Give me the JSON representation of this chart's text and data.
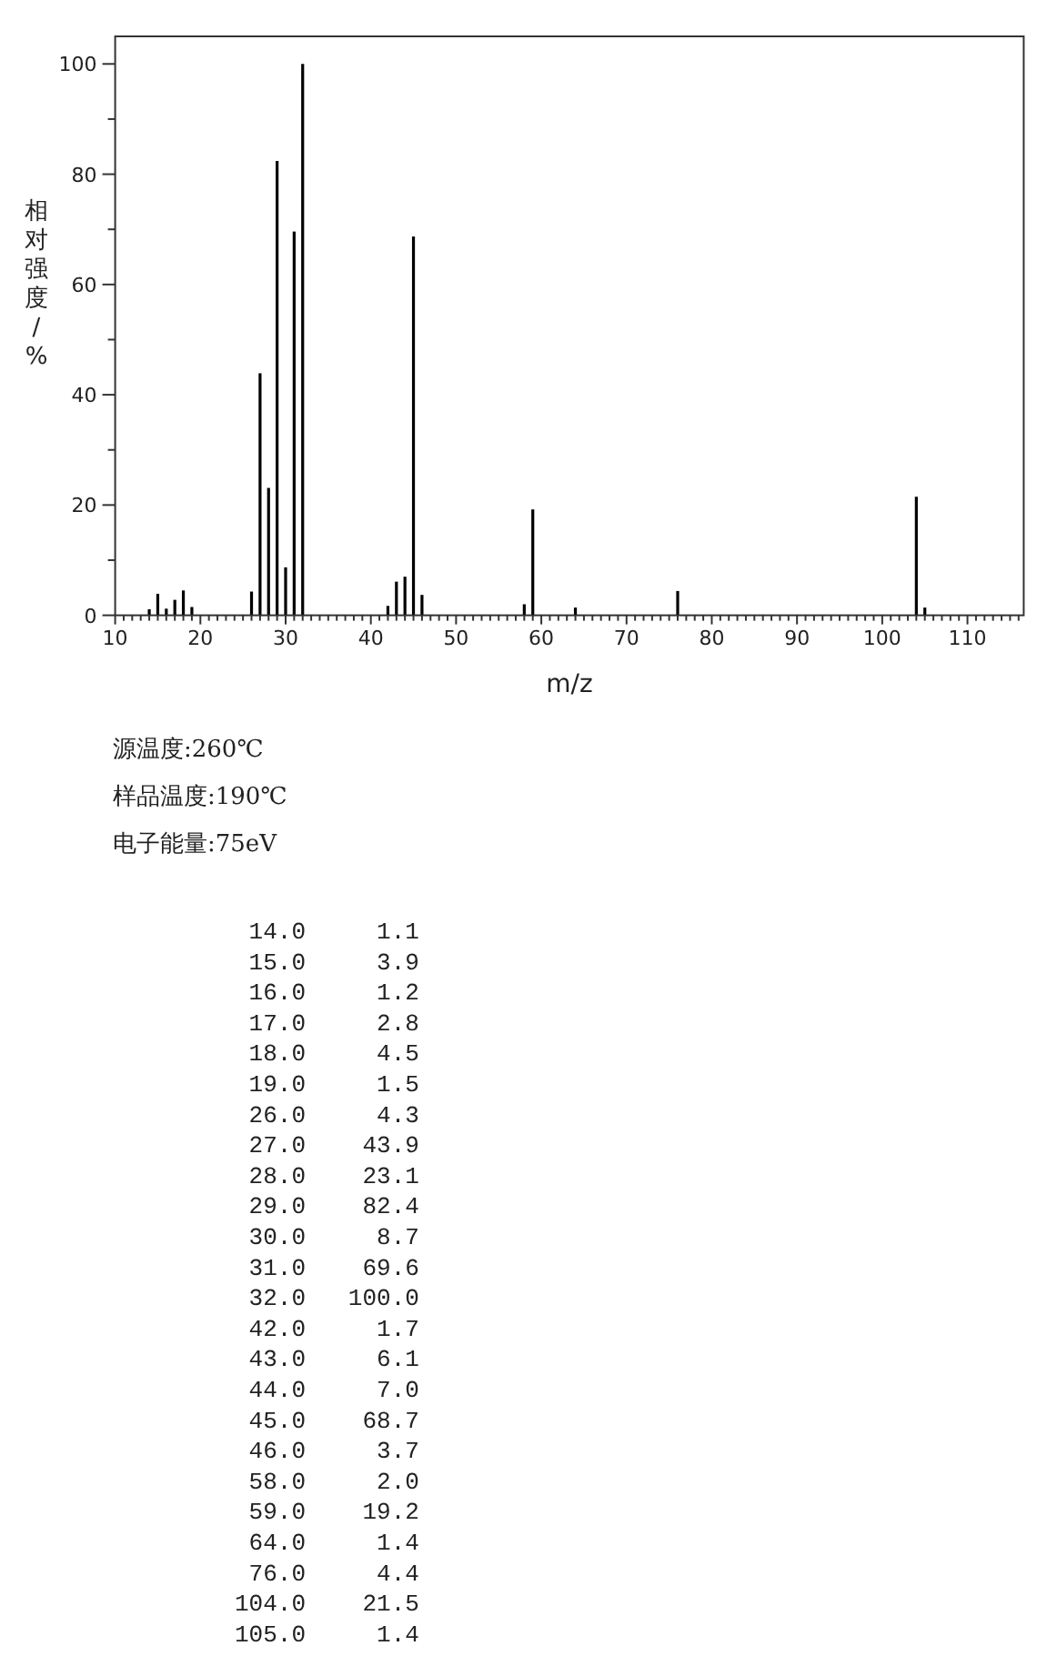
{
  "chart_data": {
    "type": "bar",
    "xlabel": "m/z",
    "ylabel": "相对强度/%",
    "annotations": [
      "源温度:260℃",
      "样品温度:190℃",
      "电子能量:75eV",
      " 14.0     1.1",
      " 15.0     3.9",
      " 16.0     1.2",
      " 17.0     2.8",
      " 18.0     4.5",
      " 19.0     1.5",
      " 26.0     4.3",
      " 27.0    43.9",
      " 28.0    23.1",
      " 29.0    82.4",
      " 30.0     8.7",
      " 31.0    69.6",
      " 32.0   100.0",
      " 42.0     1.7",
      " 43.0     6.1",
      " 44.0     7.0",
      " 45.0    68.7",
      " 46.0     3.7",
      " 58.0     2.0",
      " 59.0    19.2",
      " 64.0     1.4",
      " 76.0     4.4",
      "104.0    21.5",
      "105.0     1.4"
    ],
    "x": [
      14,
      15,
      16,
      17,
      18,
      19,
      26,
      27,
      28,
      29,
      30,
      31,
      32,
      42,
      43,
      44,
      45,
      46,
      58,
      59,
      64,
      76,
      104,
      105
    ],
    "values": [
      1.1,
      3.9,
      1.2,
      2.8,
      4.5,
      1.5,
      4.3,
      43.9,
      23.1,
      82.4,
      8.7,
      69.6,
      100.0,
      1.7,
      6.1,
      7.0,
      68.7,
      3.7,
      2.0,
      19.2,
      1.4,
      4.4,
      21.5,
      1.4
    ],
    "color": "#000000",
    "xlim": [
      10,
      116.6
    ],
    "ylim": [
      0,
      105
    ],
    "xticks": [
      10,
      {
        "value": 11,
        "label": null
      },
      {
        "value": 12,
        "label": null
      },
      {
        "value": 13,
        "label": null
      },
      {
        "value": 14,
        "label": null
      },
      {
        "value": 15,
        "label": null
      },
      {
        "value": 16,
        "label": null
      },
      {
        "value": 17,
        "label": null
      },
      {
        "value": 18,
        "label": null
      },
      {
        "value": 19,
        "label": null
      },
      20,
      {
        "value": 21,
        "label": null
      },
      {
        "value": 22,
        "label": null
      },
      {
        "value": 23,
        "label": null
      },
      {
        "value": 24,
        "label": null
      },
      {
        "value": 25,
        "label": null
      },
      {
        "value": 26,
        "label": null
      },
      {
        "value": 27,
        "label": null
      },
      {
        "value": 28,
        "label": null
      },
      {
        "value": 29,
        "label": null
      },
      30,
      {
        "value": 31,
        "label": null
      },
      {
        "value": 32,
        "label": null
      },
      {
        "value": 33,
        "label": null
      },
      {
        "value": 34,
        "label": null
      },
      {
        "value": 35,
        "label": null
      },
      {
        "value": 36,
        "label": null
      },
      {
        "value": 37,
        "label": null
      },
      {
        "value": 38,
        "label": null
      },
      {
        "value": 39,
        "label": null
      },
      40,
      {
        "value": 41,
        "label": null
      },
      {
        "value": 42,
        "label": null
      },
      {
        "value": 43,
        "label": null
      },
      {
        "value": 44,
        "label": null
      },
      {
        "value": 45,
        "label": null
      },
      {
        "value": 46,
        "label": null
      },
      {
        "value": 47,
        "label": null
      },
      {
        "value": 48,
        "label": null
      },
      {
        "value": 49,
        "label": null
      },
      50,
      {
        "value": 51,
        "label": null
      },
      {
        "value": 52,
        "label": null
      },
      {
        "value": 53,
        "label": null
      },
      {
        "value": 54,
        "label": null
      },
      {
        "value": 55,
        "label": null
      },
      {
        "value": 56,
        "label": null
      },
      {
        "value": 57,
        "label": null
      },
      {
        "value": 58,
        "label": null
      },
      {
        "value": 59,
        "label": null
      },
      60,
      {
        "value": 61,
        "label": null
      },
      {
        "value": 62,
        "label": null
      },
      {
        "value": 63,
        "label": null
      },
      {
        "value": 64,
        "label": null
      },
      {
        "value": 65,
        "label": null
      },
      {
        "value": 66,
        "label": null
      },
      {
        "value": 67,
        "label": null
      },
      {
        "value": 68,
        "label": null
      },
      {
        "value": 69,
        "label": null
      },
      70,
      {
        "value": 71,
        "label": null
      },
      {
        "value": 72,
        "label": null
      },
      {
        "value": 73,
        "label": null
      },
      {
        "value": 74,
        "label": null
      },
      {
        "value": 75,
        "label": null
      },
      {
        "value": 76,
        "label": null
      },
      {
        "value": 77,
        "label": null
      },
      {
        "value": 78,
        "label": null
      },
      {
        "value": 79,
        "label": null
      },
      80,
      {
        "value": 81,
        "label": null
      },
      {
        "value": 82,
        "label": null
      },
      {
        "value": 83,
        "label": null
      },
      {
        "value": 84,
        "label": null
      },
      {
        "value": 85,
        "label": null
      },
      {
        "value": 86,
        "label": null
      },
      {
        "value": 87,
        "label": null
      },
      {
        "value": 88,
        "label": null
      },
      {
        "value": 89,
        "label": null
      },
      90,
      {
        "value": 91,
        "label": null
      },
      {
        "value": 92,
        "label": null
      },
      {
        "value": 93,
        "label": null
      },
      {
        "value": 94,
        "label": null
      },
      {
        "value": 95,
        "label": null
      },
      {
        "value": 96,
        "label": null
      },
      {
        "value": 97,
        "label": null
      },
      {
        "value": 98,
        "label": null
      },
      {
        "value": 99,
        "label": null
      },
      100,
      {
        "value": 101,
        "label": null
      },
      {
        "value": 102,
        "label": null
      },
      {
        "value": 103,
        "label": null
      },
      {
        "value": 104,
        "label": null
      },
      {
        "value": 105,
        "label": null
      },
      {
        "value": 106,
        "label": null
      },
      {
        "value": 107,
        "label": null
      },
      {
        "value": 108,
        "label": null
      },
      {
        "value": 109,
        "label": null
      },
      110,
      {
        "value": 111,
        "label": null
      },
      {
        "value": 112,
        "label": null
      },
      {
        "value": 113,
        "label": null
      },
      {
        "value": 114,
        "label": null
      },
      {
        "value": 115,
        "label": null
      },
      {
        "value": 116,
        "label": null
      }
    ],
    "yticks": [
      0,
      {
        "value": 10,
        "label": null
      },
      20,
      {
        "value": 30,
        "label": null
      },
      40,
      {
        "value": 50,
        "label": null
      },
      60,
      {
        "value": 70,
        "label": null
      },
      80,
      {
        "value": 90,
        "label": null
      },
      100
    ],
    "grid": false
  }
}
